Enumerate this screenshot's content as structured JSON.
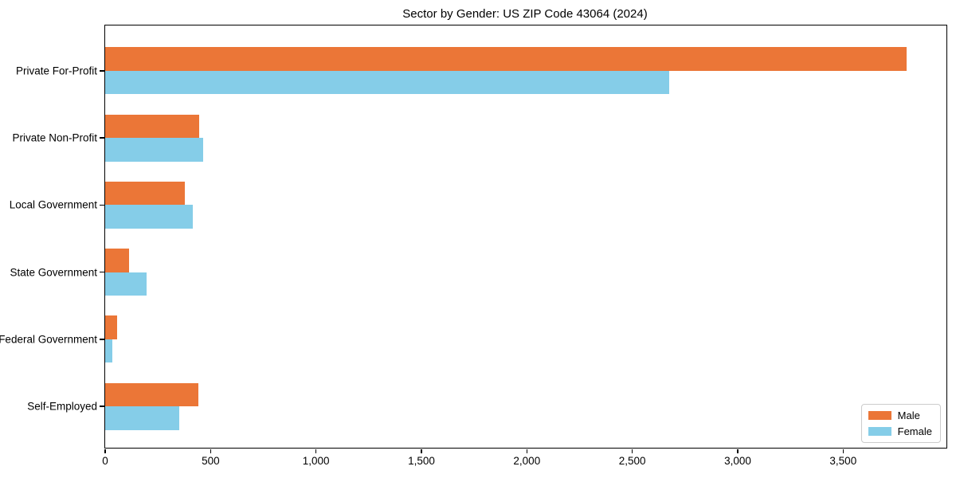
{
  "chart_data": {
    "type": "bar",
    "orientation": "horizontal",
    "title": "Sector by Gender: US ZIP Code 43064 (2024)",
    "categories": [
      "Private For-Profit",
      "Private Non-Profit",
      "Local Government",
      "State Government",
      "Federal Government",
      "Self-Employed"
    ],
    "series": [
      {
        "name": "Male",
        "color": "#eb7637",
        "values": [
          3800,
          445,
          378,
          114,
          57,
          443
        ]
      },
      {
        "name": "Female",
        "color": "#85cde8",
        "values": [
          2675,
          465,
          417,
          197,
          34,
          352
        ]
      }
    ],
    "xlabel": "",
    "ylabel": "",
    "xlim": [
      0,
      3990
    ],
    "xticks": {
      "values": [
        0,
        500,
        1000,
        1500,
        2000,
        2500,
        3000,
        3500
      ],
      "labels": [
        "0",
        "500",
        "1,000",
        "1,500",
        "2,000",
        "2,500",
        "3,000",
        "3,500"
      ]
    },
    "grid": false,
    "legend_position": "lower right"
  }
}
